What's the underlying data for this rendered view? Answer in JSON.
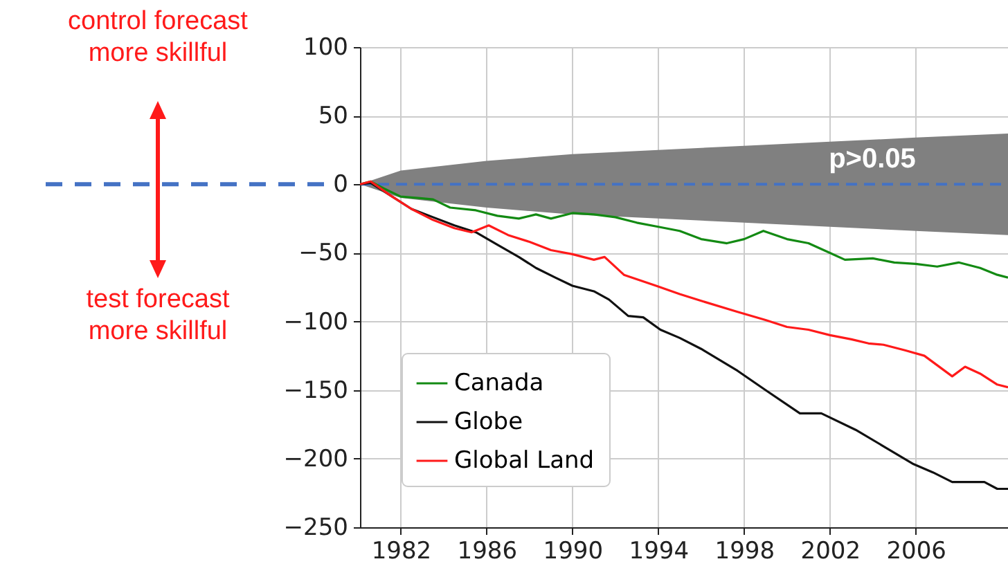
{
  "chart_data": {
    "type": "line",
    "xlim": [
      1980.1,
      2010.3
    ],
    "xticks": [
      1982,
      1986,
      1990,
      1994,
      1998,
      2002,
      2006
    ],
    "ylim": [
      -250,
      100
    ],
    "yticks": [
      -250,
      -200,
      -150,
      -100,
      -50,
      0,
      50,
      100
    ],
    "grid": true,
    "legend": "bottom left",
    "series": [
      {
        "color": "#4472c4",
        "line_style": "dashed",
        "x": [
          1980.1,
          1982,
          1986,
          1990,
          1994,
          1998,
          2002,
          2006,
          2010.3
        ],
        "values": [
          0,
          0,
          0,
          0,
          0,
          0,
          0,
          0,
          0
        ],
        "lower": [
          0,
          -10,
          -17,
          -22,
          -25,
          -28,
          -31,
          -34,
          -37
        ],
        "upper": [
          0,
          10,
          17,
          22,
          25,
          28,
          31,
          34,
          37
        ]
      },
      {
        "name": "Canada",
        "color": "#138a13",
        "x": [
          1980.1,
          1980.6,
          1981.2,
          1982,
          1982.8,
          1983.5,
          1984.3,
          1985.5,
          1986.5,
          1987.5,
          1988.3,
          1989,
          1990,
          1991,
          1992,
          1993,
          1994,
          1995,
          1996,
          1997.2,
          1998,
          1998.9,
          2000,
          2001,
          2002,
          2002.7,
          2004,
          2005,
          2006,
          2007,
          2008,
          2009,
          2009.8,
          2010.3
        ],
        "values": [
          0,
          2,
          -3,
          -9,
          -10,
          -11,
          -17,
          -19,
          -23,
          -25,
          -22,
          -25,
          -21,
          -22,
          -24,
          -28,
          -31,
          -34,
          -40,
          -43,
          -40,
          -34,
          -40,
          -43,
          -50,
          -55,
          -54,
          -57,
          -58,
          -60,
          -57,
          -61,
          -66,
          -68
        ]
      },
      {
        "name": "Globe",
        "color": "#111111",
        "x": [
          1980.1,
          1980.6,
          1981.5,
          1982.5,
          1983.5,
          1984.5,
          1985.5,
          1986.5,
          1987.5,
          1988.3,
          1989.2,
          1990,
          1991,
          1991.7,
          1992.6,
          1993.3,
          1994.1,
          1995,
          1996,
          1997.7,
          1999,
          2000.6,
          2001.6,
          2003.2,
          2004.5,
          2005.9,
          2006.8,
          2007.7,
          2009.2,
          2009.8,
          2010.3
        ],
        "values": [
          0,
          1,
          -8,
          -18,
          -24,
          -30,
          -35,
          -44,
          -53,
          -61,
          -68,
          -74,
          -78,
          -84,
          -96,
          -97,
          -106,
          -112,
          -120,
          -136,
          -150,
          -167,
          -167,
          -179,
          -191,
          -204,
          -210,
          -217,
          -217,
          -222,
          -222
        ]
      },
      {
        "name": "Global Land",
        "color": "#ff1a1a",
        "x": [
          1980.1,
          1980.6,
          1981.5,
          1982.5,
          1983.5,
          1984.5,
          1985.3,
          1986.1,
          1987,
          1988,
          1989,
          1990,
          1991,
          1991.5,
          1992.4,
          1993.9,
          1995,
          1996,
          1997.7,
          1999,
          2000,
          2001,
          2002,
          2003,
          2003.8,
          2004.5,
          2005.5,
          2006.4,
          2007.7,
          2008.3,
          2009,
          2009.8,
          2010.3
        ],
        "values": [
          0,
          2,
          -8,
          -18,
          -26,
          -32,
          -35,
          -30,
          -37,
          -42,
          -48,
          -51,
          -55,
          -53,
          -66,
          -74,
          -80,
          -85,
          -93,
          -99,
          -104,
          -106,
          -110,
          -113,
          -116,
          -117,
          -121,
          -125,
          -140,
          -133,
          -138,
          -146,
          -148
        ]
      }
    ],
    "annotations": [
      "control forecast\nmore skillful",
      "test forecast\nmore skillful",
      "p>0.05"
    ]
  }
}
